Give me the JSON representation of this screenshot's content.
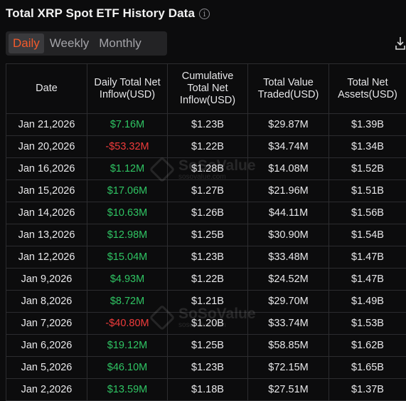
{
  "header": {
    "title": "Total XRP Spot ETF History Data",
    "info_icon": "info-icon"
  },
  "tabs": [
    {
      "label": "Daily",
      "active": true
    },
    {
      "label": "Weekly",
      "active": false
    },
    {
      "label": "Monthly",
      "active": false
    }
  ],
  "download_icon": "download-icon",
  "table": {
    "columns": [
      "Date",
      "Daily Total Net Inflow(USD)",
      "Cumulative Total Net Inflow(USD)",
      "Total Value Traded(USD)",
      "Total Net Assets(USD)"
    ],
    "rows": [
      {
        "date": "Jan 21,2026",
        "inflow": "$7.16M",
        "sign": "pos",
        "cumulative": "$1.23B",
        "traded": "$29.87M",
        "assets": "$1.39B"
      },
      {
        "date": "Jan 20,2026",
        "inflow": "-$53.32M",
        "sign": "neg",
        "cumulative": "$1.22B",
        "traded": "$34.74M",
        "assets": "$1.34B"
      },
      {
        "date": "Jan 16,2026",
        "inflow": "$1.12M",
        "sign": "pos",
        "cumulative": "$1.28B",
        "traded": "$14.08M",
        "assets": "$1.52B"
      },
      {
        "date": "Jan 15,2026",
        "inflow": "$17.06M",
        "sign": "pos",
        "cumulative": "$1.27B",
        "traded": "$21.96M",
        "assets": "$1.51B"
      },
      {
        "date": "Jan 14,2026",
        "inflow": "$10.63M",
        "sign": "pos",
        "cumulative": "$1.26B",
        "traded": "$44.11M",
        "assets": "$1.56B"
      },
      {
        "date": "Jan 13,2026",
        "inflow": "$12.98M",
        "sign": "pos",
        "cumulative": "$1.25B",
        "traded": "$30.90M",
        "assets": "$1.54B"
      },
      {
        "date": "Jan 12,2026",
        "inflow": "$15.04M",
        "sign": "pos",
        "cumulative": "$1.23B",
        "traded": "$33.48M",
        "assets": "$1.47B"
      },
      {
        "date": "Jan 9,2026",
        "inflow": "$4.93M",
        "sign": "pos",
        "cumulative": "$1.22B",
        "traded": "$24.52M",
        "assets": "$1.47B"
      },
      {
        "date": "Jan 8,2026",
        "inflow": "$8.72M",
        "sign": "pos",
        "cumulative": "$1.21B",
        "traded": "$29.70M",
        "assets": "$1.49B"
      },
      {
        "date": "Jan 7,2026",
        "inflow": "-$40.80M",
        "sign": "neg",
        "cumulative": "$1.20B",
        "traded": "$33.74M",
        "assets": "$1.53B"
      },
      {
        "date": "Jan 6,2026",
        "inflow": "$19.12M",
        "sign": "pos",
        "cumulative": "$1.25B",
        "traded": "$58.85M",
        "assets": "$1.62B"
      },
      {
        "date": "Jan 5,2026",
        "inflow": "$46.10M",
        "sign": "pos",
        "cumulative": "$1.23B",
        "traded": "$72.15M",
        "assets": "$1.65B"
      },
      {
        "date": "Jan 2,2026",
        "inflow": "$13.59M",
        "sign": "pos",
        "cumulative": "$1.18B",
        "traded": "$27.51M",
        "assets": "$1.37B"
      }
    ]
  },
  "watermark": {
    "brand": "SoSoValue",
    "url": "sosovalue.com"
  },
  "colors": {
    "accent": "#f35a2c",
    "positive": "#2fc463",
    "negative": "#ef3b3b",
    "background": "#0c0c0d"
  }
}
